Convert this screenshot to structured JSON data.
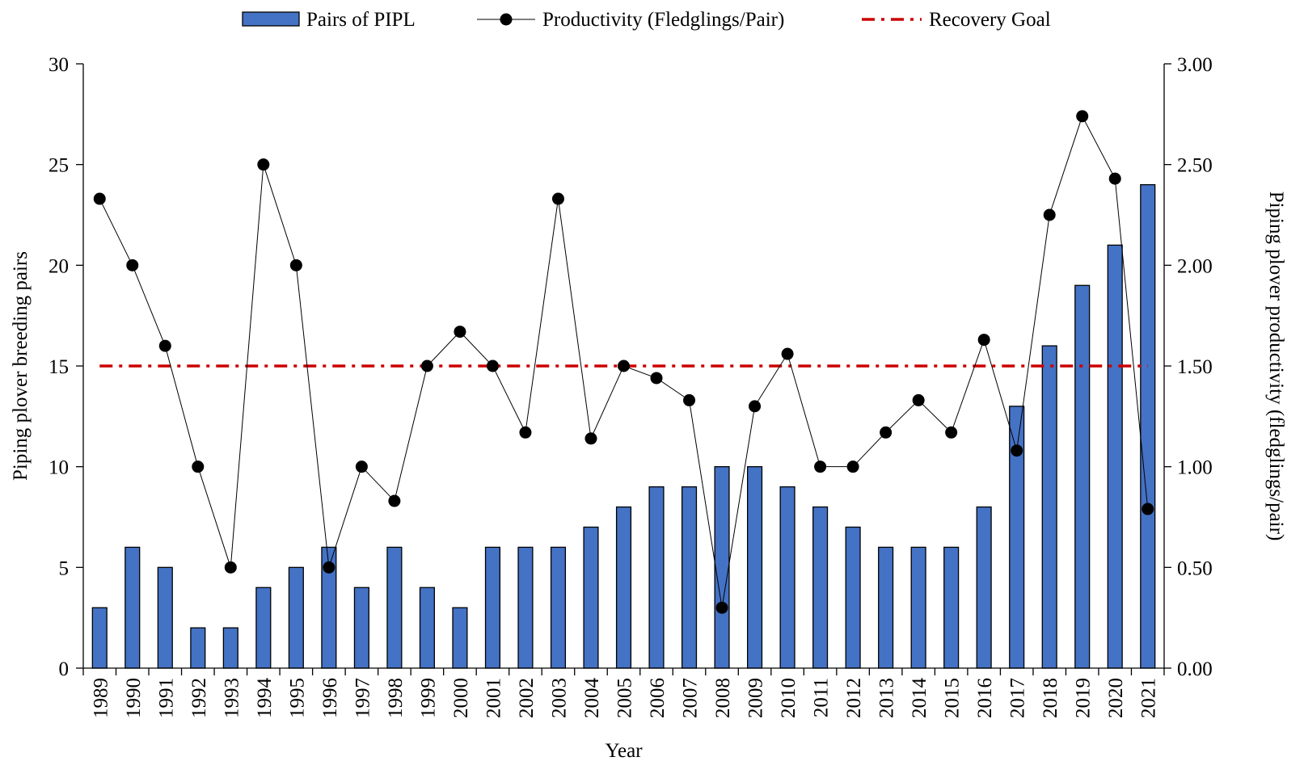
{
  "chart_data": {
    "type": "bar",
    "categories": [
      "1989",
      "1990",
      "1991",
      "1992",
      "1993",
      "1994",
      "1995",
      "1996",
      "1997",
      "1998",
      "1999",
      "2000",
      "2001",
      "2002",
      "2003",
      "2004",
      "2005",
      "2006",
      "2007",
      "2008",
      "2009",
      "2010",
      "2011",
      "2012",
      "2013",
      "2014",
      "2015",
      "2016",
      "2017",
      "2018",
      "2019",
      "2020",
      "2021"
    ],
    "series": [
      {
        "name": "Pairs of PIPL",
        "type": "bar",
        "axis": "left",
        "color": "#4472c4",
        "values": [
          3,
          6,
          5,
          2,
          2,
          4,
          5,
          6,
          4,
          6,
          4,
          3,
          6,
          6,
          6,
          7,
          8,
          9,
          9,
          10,
          10,
          9,
          8,
          7,
          6,
          6,
          6,
          8,
          13,
          16,
          19,
          21,
          24
        ]
      },
      {
        "name": "Productivity (Fledglings/Pair)",
        "type": "line",
        "axis": "right",
        "color": "#000000",
        "values": [
          2.33,
          2.0,
          1.6,
          1.0,
          0.5,
          2.5,
          2.0,
          0.5,
          1.0,
          0.83,
          1.5,
          1.67,
          1.5,
          1.17,
          2.33,
          1.14,
          1.5,
          1.44,
          1.33,
          0.3,
          1.3,
          1.56,
          1.0,
          1.0,
          1.17,
          1.33,
          1.17,
          1.63,
          1.08,
          2.25,
          2.74,
          2.43,
          0.79
        ]
      },
      {
        "name": "Recovery Goal",
        "type": "reference-line",
        "axis": "right",
        "color": "#cc0000",
        "value": 1.5
      }
    ],
    "xlabel": "Year",
    "ylabel": "Piping plover breeding pairs",
    "y2label": "Piping plover productivity (fledglings/pair)",
    "ylim": [
      0,
      30
    ],
    "y2lim": [
      0,
      3
    ],
    "yticks": [
      "0",
      "5",
      "10",
      "15",
      "20",
      "25",
      "30"
    ],
    "y2ticks": [
      "0.00",
      "0.50",
      "1.00",
      "1.50",
      "2.00",
      "2.50",
      "3.00"
    ],
    "grid": false,
    "legend_position": "top"
  }
}
